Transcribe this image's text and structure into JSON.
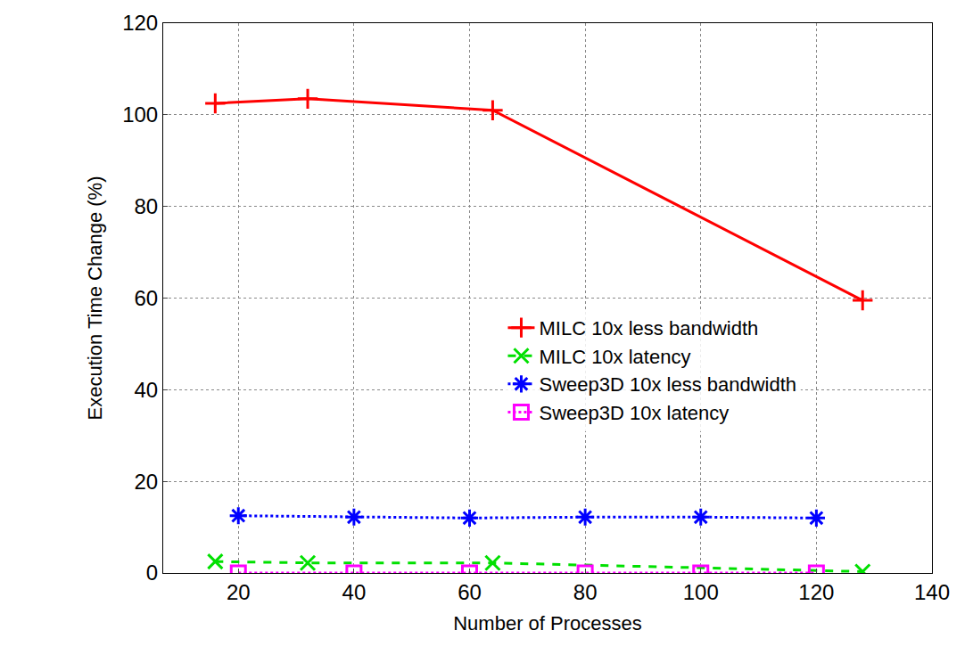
{
  "chart_data": {
    "type": "line",
    "x_label": "Number of Processes",
    "y_label": "Execution Time Change (%)",
    "xlim": [
      7,
      140
    ],
    "xticks": [
      20,
      40,
      60,
      80,
      100,
      120,
      140
    ],
    "ylim": [
      0,
      120
    ],
    "yticks": [
      0,
      20,
      40,
      60,
      80,
      100,
      120
    ],
    "grid": true,
    "legend": "right",
    "series": [
      {
        "name": "MILC 10x less bandwidth",
        "color": "#ff0000",
        "marker": "plus",
        "line_style": "solid",
        "x": [
          16,
          32,
          64,
          128
        ],
        "values": [
          102.5,
          103.5,
          101,
          59.5
        ]
      },
      {
        "name": "MILC 10x latency",
        "color": "#00e000",
        "marker": "x",
        "line_style": "dashed",
        "x": [
          16,
          32,
          64,
          128
        ],
        "values": [
          2.5,
          2.2,
          2.2,
          0.3
        ]
      },
      {
        "name": "Sweep3D 10x less bandwidth",
        "color": "#0000ff",
        "marker": "asterisk",
        "line_style": "dotted",
        "x": [
          20,
          40,
          60,
          80,
          100,
          120
        ],
        "values": [
          12.5,
          12.2,
          12,
          12.2,
          12.2,
          12
        ]
      },
      {
        "name": "Sweep3D 10x latency",
        "color": "#ff00ff",
        "marker": "square",
        "line_style": "dotted",
        "x": [
          20,
          40,
          60,
          80,
          100,
          120
        ],
        "values": [
          0,
          0,
          0,
          0,
          0,
          0
        ]
      }
    ]
  }
}
